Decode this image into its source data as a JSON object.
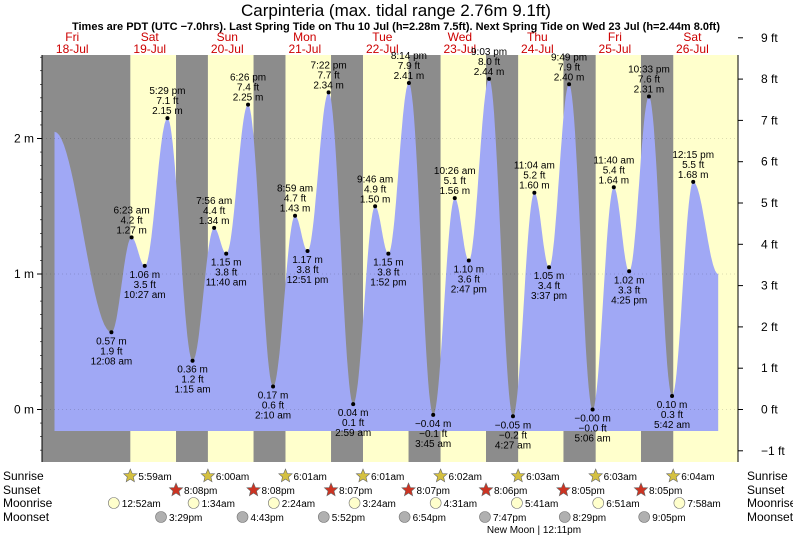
{
  "header": {
    "title": "Carpinteria (max. tidal range 2.76m 9.1ft)",
    "subtitle": "Times are PDT (UTC −7.0hrs). Last Spring Tide on Thu 10 Jul (h=2.28m 7.5ft). Next Spring Tide on Wed 23 Jul (h=2.44m 8.0ft)"
  },
  "days": [
    {
      "dow": "Fri",
      "date": "18-Jul"
    },
    {
      "dow": "Sat",
      "date": "19-Jul"
    },
    {
      "dow": "Sun",
      "date": "20-Jul"
    },
    {
      "dow": "Mon",
      "date": "21-Jul"
    },
    {
      "dow": "Tue",
      "date": "22-Jul"
    },
    {
      "dow": "Wed",
      "date": "23-Jul"
    },
    {
      "dow": "Thu",
      "date": "24-Jul"
    },
    {
      "dow": "Fri",
      "date": "25-Jul"
    },
    {
      "dow": "Sat",
      "date": "26-Jul"
    }
  ],
  "chart_data": {
    "type": "area",
    "x_unit": "hours from 00:00 Fri 18-Jul (PDT)",
    "y_unit": "m",
    "ylim": [
      -0.5,
      3.0
    ],
    "y_ticks_left": [
      {
        "v": 0,
        "label": "0 m"
      },
      {
        "v": 1,
        "label": "1 m"
      },
      {
        "v": 2,
        "label": "2 m"
      }
    ],
    "y_ticks_right": [
      {
        "v": -0.3048,
        "label": "−1 ft"
      },
      {
        "v": 0,
        "label": "0 ft"
      },
      {
        "v": 0.3048,
        "label": "1 ft"
      },
      {
        "v": 0.6096,
        "label": "2 ft"
      },
      {
        "v": 0.9144,
        "label": "3 ft"
      },
      {
        "v": 1.2192,
        "label": "4 ft"
      },
      {
        "v": 1.524,
        "label": "5 ft"
      },
      {
        "v": 1.8288,
        "label": "6 ft"
      },
      {
        "v": 2.1336,
        "label": "7 ft"
      },
      {
        "v": 2.4384,
        "label": "8 ft"
      },
      {
        "v": 2.7432,
        "label": "9 ft"
      }
    ],
    "series": [
      {
        "x": -17.5,
        "y": 2.05
      },
      {
        "x": 0.13,
        "y": 0.57,
        "t": "12:08 am",
        "m": "0.57 m",
        "f": "1.9 ft",
        "type": "low"
      },
      {
        "x": 6.38,
        "y": 1.27,
        "t": "6:23 am",
        "m": "1.27 m",
        "f": "4.2 ft",
        "type": "high"
      },
      {
        "x": 10.45,
        "y": 1.06,
        "t": "10:27 am",
        "m": "1.06 m",
        "f": "3.5 ft",
        "type": "low"
      },
      {
        "x": 17.48,
        "y": 2.15,
        "t": "5:29 pm",
        "m": "2.15 m",
        "f": "7.1 ft",
        "type": "high"
      },
      {
        "x": 25.25,
        "y": 0.36,
        "t": "1:15 am",
        "m": "0.36 m",
        "f": "1.2 ft",
        "type": "low"
      },
      {
        "x": 31.93,
        "y": 1.34,
        "t": "7:56 am",
        "m": "1.34 m",
        "f": "4.4 ft",
        "type": "high"
      },
      {
        "x": 35.67,
        "y": 1.15,
        "t": "11:40 am",
        "m": "1.15 m",
        "f": "3.8 ft",
        "type": "low"
      },
      {
        "x": 42.43,
        "y": 2.25,
        "t": "6:26 pm",
        "m": "2.25 m",
        "f": "7.4 ft",
        "type": "high"
      },
      {
        "x": 50.17,
        "y": 0.17,
        "t": "2:10 am",
        "m": "0.17 m",
        "f": "0.6 ft",
        "type": "low"
      },
      {
        "x": 56.98,
        "y": 1.43,
        "t": "8:59 am",
        "m": "1.43 m",
        "f": "4.7 ft",
        "type": "high"
      },
      {
        "x": 60.85,
        "y": 1.17,
        "t": "12:51 pm",
        "m": "1.17 m",
        "f": "3.8 ft",
        "type": "low"
      },
      {
        "x": 67.37,
        "y": 2.34,
        "t": "7:22 pm",
        "m": "2.34 m",
        "f": "7.7 ft",
        "type": "high"
      },
      {
        "x": 74.98,
        "y": 0.04,
        "t": "2:59 am",
        "m": "0.04 m",
        "f": "0.1 ft",
        "type": "low"
      },
      {
        "x": 81.77,
        "y": 1.5,
        "t": "9:46 am",
        "m": "1.50 m",
        "f": "4.9 ft",
        "type": "high"
      },
      {
        "x": 85.87,
        "y": 1.15,
        "t": "1:52 pm",
        "m": "1.15 m",
        "f": "3.8 ft",
        "type": "low"
      },
      {
        "x": 92.23,
        "y": 2.41,
        "t": "8:14 pm",
        "m": "2.41 m",
        "f": "7.9 ft",
        "type": "high"
      },
      {
        "x": 99.75,
        "y": -0.04,
        "t": "3:45 am",
        "m": "−0.04 m",
        "f": "−0.1 ft",
        "type": "low"
      },
      {
        "x": 106.43,
        "y": 1.56,
        "t": "10:26 am",
        "m": "1.56 m",
        "f": "5.1 ft",
        "type": "high"
      },
      {
        "x": 110.78,
        "y": 1.1,
        "t": "2:47 pm",
        "m": "1.10 m",
        "f": "3.6 ft",
        "type": "low"
      },
      {
        "x": 117.05,
        "y": 2.44,
        "t": "9:03 pm",
        "m": "2.44 m",
        "f": "8.0 ft",
        "type": "high"
      },
      {
        "x": 124.45,
        "y": -0.05,
        "t": "4:27 am",
        "m": "−0.05 m",
        "f": "−0.2 ft",
        "type": "low"
      },
      {
        "x": 131.07,
        "y": 1.6,
        "t": "11:04 am",
        "m": "1.60 m",
        "f": "5.2 ft",
        "type": "high"
      },
      {
        "x": 135.62,
        "y": 1.05,
        "t": "3:37 pm",
        "m": "1.05 m",
        "f": "3.4 ft",
        "type": "low"
      },
      {
        "x": 141.82,
        "y": 2.4,
        "t": "9:49 pm",
        "m": "2.40 m",
        "f": "7.9 ft",
        "type": "high"
      },
      {
        "x": 149.1,
        "y": -0.0,
        "t": "5:06 am",
        "m": "−0.00 m",
        "f": "−0.0 ft",
        "type": "low"
      },
      {
        "x": 155.67,
        "y": 1.64,
        "t": "11:40 am",
        "m": "1.64 m",
        "f": "5.4 ft",
        "type": "high"
      },
      {
        "x": 160.42,
        "y": 1.02,
        "t": "4:25 pm",
        "m": "1.02 m",
        "f": "3.3 ft",
        "type": "low"
      },
      {
        "x": 166.55,
        "y": 2.31,
        "t": "10:33 pm",
        "m": "2.31 m",
        "f": "7.6 ft",
        "type": "high"
      },
      {
        "x": 173.7,
        "y": 0.1,
        "t": "5:42 am",
        "m": "0.10 m",
        "f": "0.3 ft",
        "type": "low"
      },
      {
        "x": 180.25,
        "y": 1.68,
        "t": "12:15 pm",
        "m": "1.68 m",
        "f": "5.5 ft",
        "type": "high"
      },
      {
        "x": 188.0,
        "y": 1.0
      }
    ],
    "night_color": "#8c8c8c",
    "day_color": "#ffffcc",
    "water_color": "#a0a8f5"
  },
  "sun_moon": {
    "row_labels": {
      "sunrise": "Sunrise",
      "sunset": "Sunset",
      "moonrise": "Moonrise",
      "moonset": "Moonset"
    },
    "sunrise": [
      {
        "x": 5.98,
        "t": "5:59am"
      },
      {
        "x": 30.0,
        "t": "6:00am"
      },
      {
        "x": 54.02,
        "t": "6:01am"
      },
      {
        "x": 78.02,
        "t": "6:01am"
      },
      {
        "x": 102.03,
        "t": "6:02am"
      },
      {
        "x": 126.05,
        "t": "6:03am"
      },
      {
        "x": 150.05,
        "t": "6:03am"
      },
      {
        "x": 174.07,
        "t": "6:04am"
      }
    ],
    "sunset": [
      {
        "x": 20.13,
        "t": "8:08pm"
      },
      {
        "x": 44.13,
        "t": "8:08pm"
      },
      {
        "x": 68.12,
        "t": "8:07pm"
      },
      {
        "x": 92.12,
        "t": "8:07pm"
      },
      {
        "x": 116.1,
        "t": "8:06pm"
      },
      {
        "x": 140.08,
        "t": "8:05pm"
      },
      {
        "x": 164.08,
        "t": "8:05pm"
      }
    ],
    "moonrise": [
      {
        "x": 0.87,
        "t": "12:52am"
      },
      {
        "x": 25.57,
        "t": "1:34am"
      },
      {
        "x": 50.4,
        "t": "2:24am"
      },
      {
        "x": 75.4,
        "t": "3:24am"
      },
      {
        "x": 100.52,
        "t": "4:31am"
      },
      {
        "x": 125.68,
        "t": "5:41am"
      },
      {
        "x": 150.85,
        "t": "6:51am"
      },
      {
        "x": 175.97,
        "t": "7:58am"
      }
    ],
    "moonset": [
      {
        "x": 15.48,
        "t": "3:29pm"
      },
      {
        "x": 40.72,
        "t": "4:43pm"
      },
      {
        "x": 65.87,
        "t": "5:52pm"
      },
      {
        "x": 90.9,
        "t": "6:54pm"
      },
      {
        "x": 115.78,
        "t": "7:47pm"
      },
      {
        "x": 140.48,
        "t": "8:29pm"
      },
      {
        "x": 165.08,
        "t": "9:05pm"
      }
    ],
    "footer": "New Moon | 12:11pm"
  },
  "colors": {
    "sunrise_star": "#d4c040",
    "sunset_star": "#cc3322",
    "moonrise": "#ffffcc",
    "moonset": "#b0b0b0"
  }
}
